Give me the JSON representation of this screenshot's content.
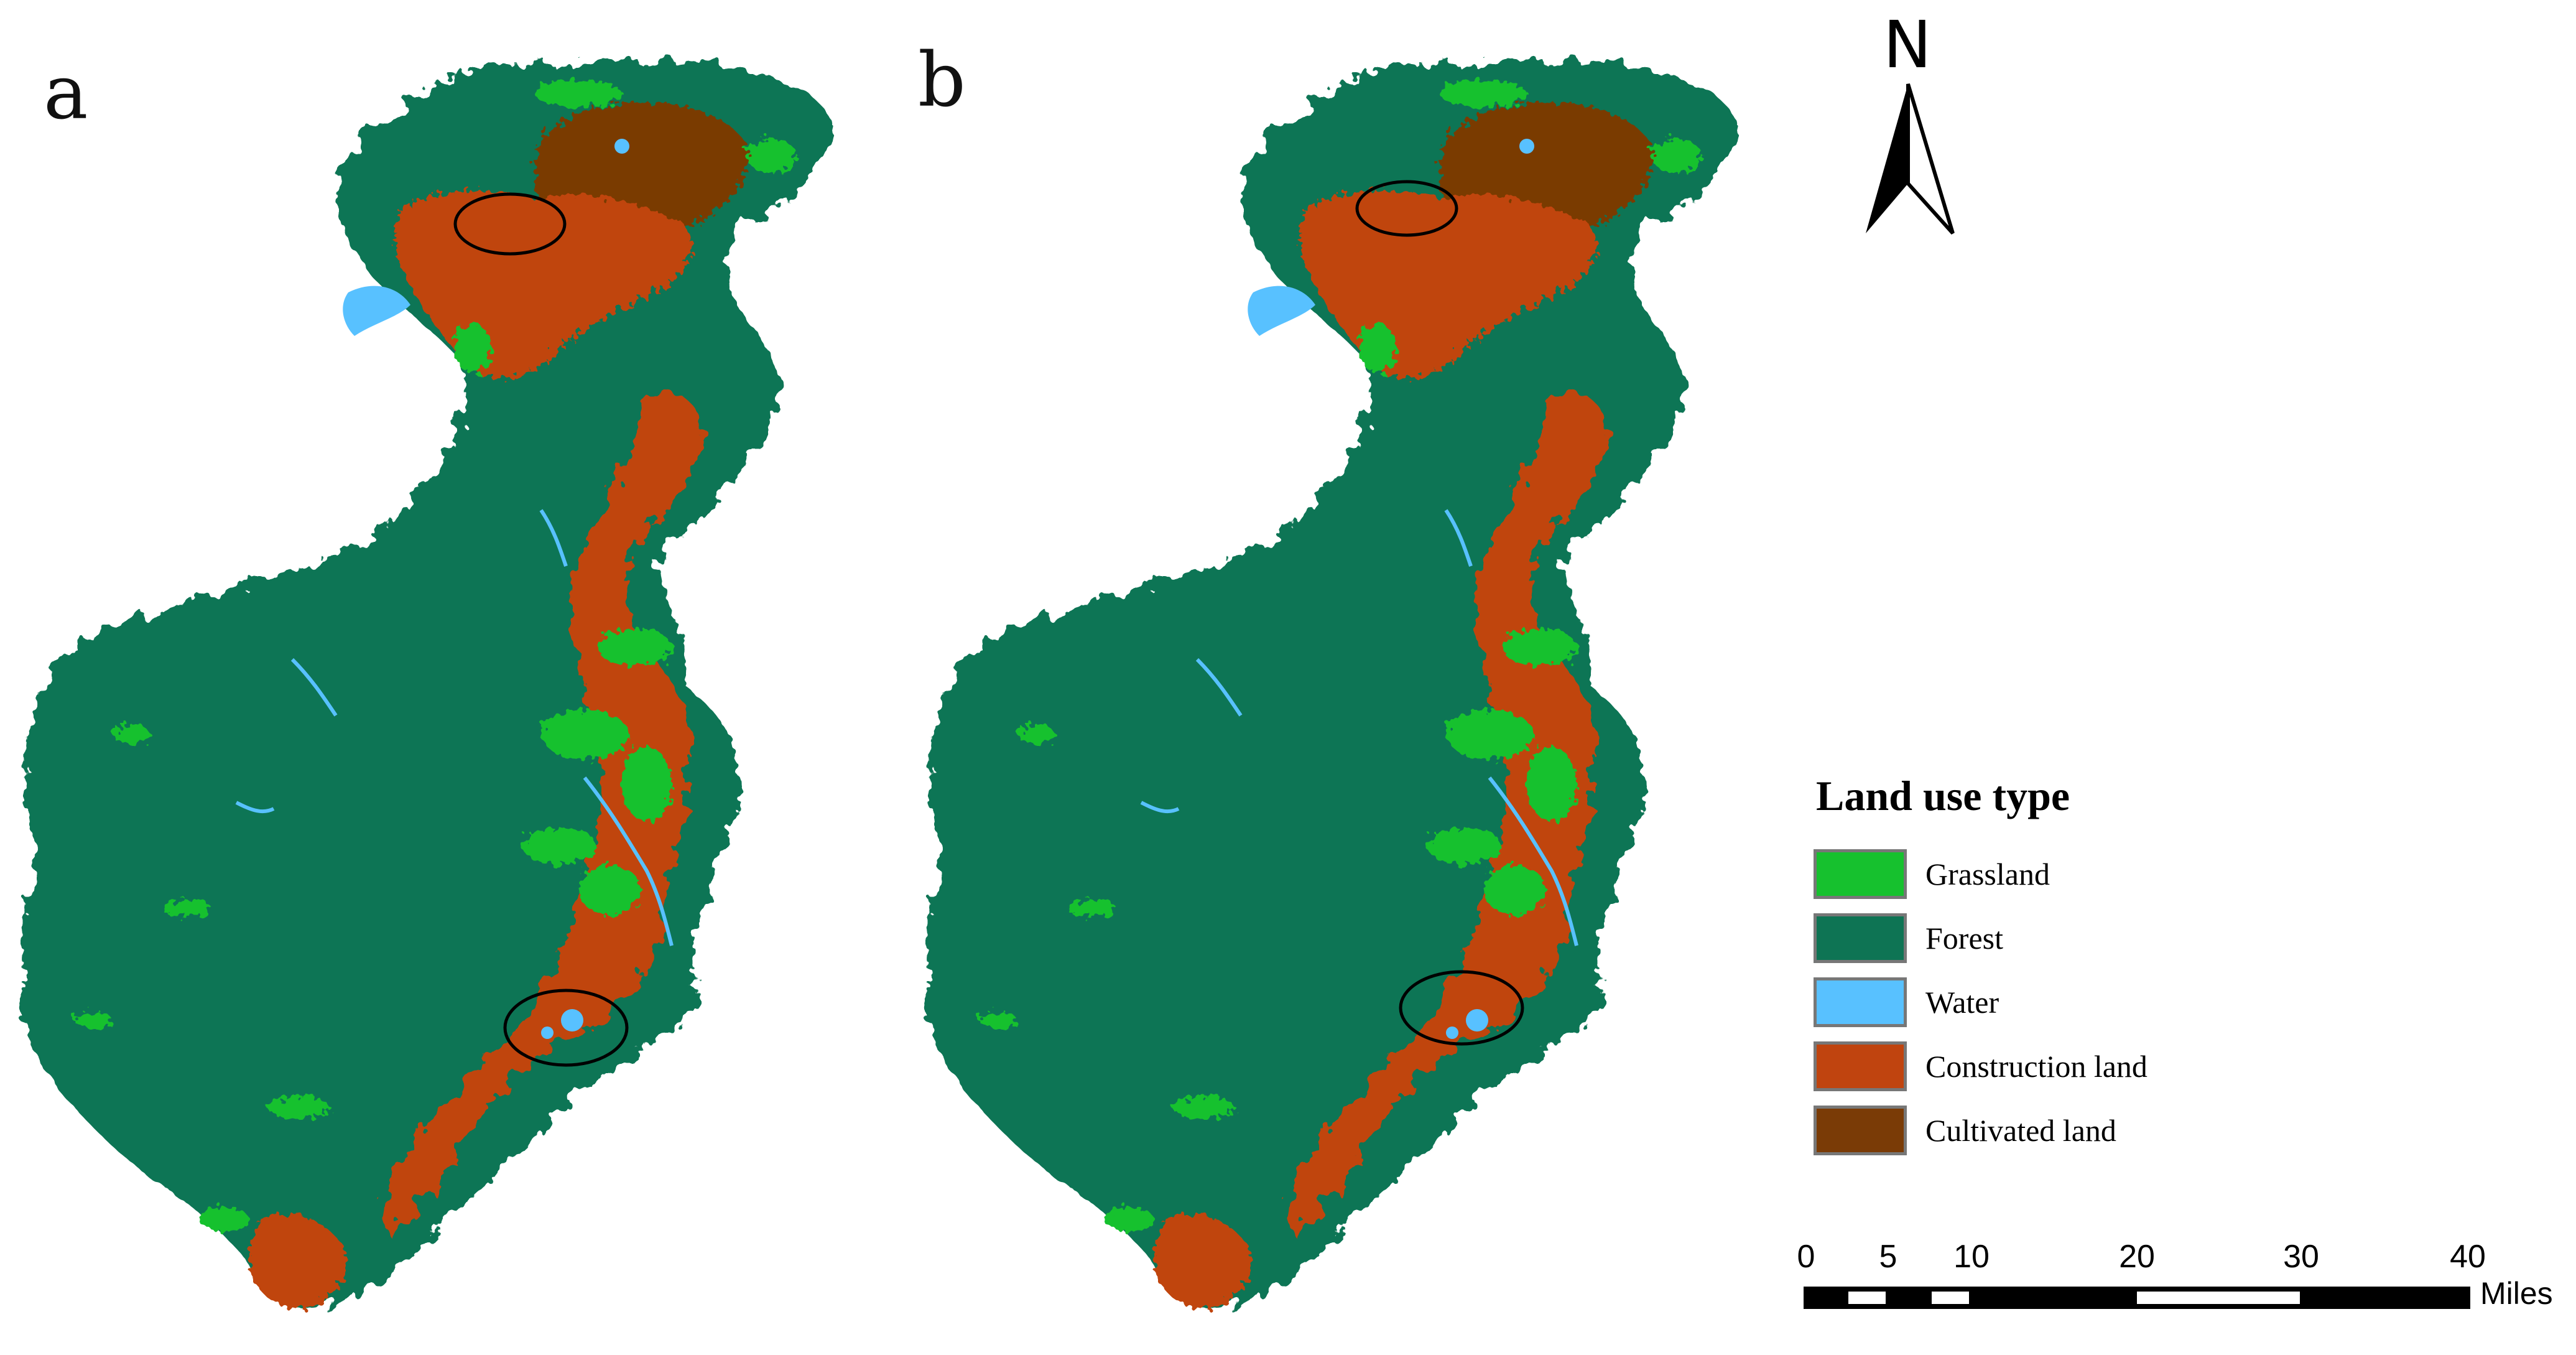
{
  "panels": [
    {
      "label": "a"
    },
    {
      "label": "b"
    }
  ],
  "north_arrow": {
    "letter": "N"
  },
  "legend": {
    "title": "Land use type",
    "items": [
      {
        "label": "Grassland",
        "color": "#16c12e"
      },
      {
        "label": "Forest",
        "color": "#0e7454"
      },
      {
        "label": "Water",
        "color": "#58c1ff"
      },
      {
        "label": "Construction land",
        "color": "#c0440f"
      },
      {
        "label": "Cultivated land",
        "color": "#7a3b06"
      }
    ]
  },
  "scale_bar": {
    "ticks": [
      "0",
      "5",
      "10",
      "20",
      "30",
      "40"
    ],
    "unit": "Miles"
  }
}
